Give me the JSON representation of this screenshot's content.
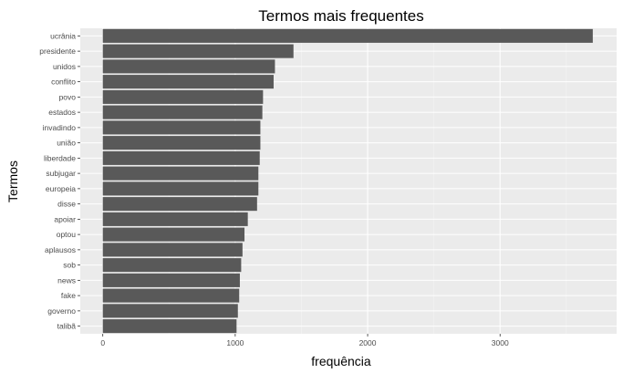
{
  "chart_data": {
    "type": "bar",
    "orientation": "horizontal",
    "title": "Termos mais frequentes",
    "xlabel": "frequência",
    "ylabel": "Termos",
    "categories": [
      "ucrânia",
      "presidente",
      "unidos",
      "conflito",
      "povo",
      "estados",
      "invadindo",
      "união",
      "liberdade",
      "subjugar",
      "europeia",
      "disse",
      "apoiar",
      "optou",
      "aplausos",
      "sob",
      "news",
      "fake",
      "governo",
      "talibã"
    ],
    "values": [
      3700,
      1440,
      1300,
      1290,
      1210,
      1205,
      1190,
      1190,
      1185,
      1175,
      1175,
      1165,
      1095,
      1070,
      1055,
      1045,
      1035,
      1030,
      1020,
      1010
    ],
    "xticks": [
      0,
      1000,
      2000,
      3000
    ],
    "xlim": [
      -170,
      3880
    ],
    "grid": true,
    "colors": {
      "bar": "#595959",
      "panel": "#ebebeb",
      "grid_major": "#ffffff",
      "grid_minor": "#f4f4f4"
    }
  }
}
